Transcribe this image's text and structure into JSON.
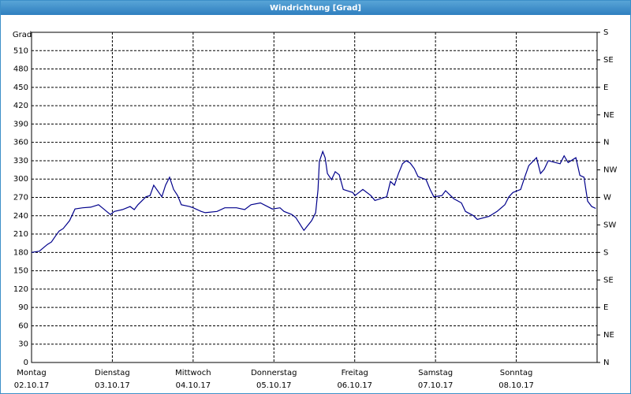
{
  "chart_data": {
    "type": "line",
    "title": "Windrichtung [Grad]",
    "y_label": "Grad",
    "color": "#00008b",
    "grid": true,
    "xlim": [
      0,
      168
    ],
    "xticks": [
      {
        "value": 0,
        "label": "Montag",
        "date": "02.10.17"
      },
      {
        "value": 24,
        "label": "Dienstag",
        "date": "03.10.17"
      },
      {
        "value": 48,
        "label": "Mittwoch",
        "date": "04.10.17"
      },
      {
        "value": 72,
        "label": "Donnerstag",
        "date": "05.10.17"
      },
      {
        "value": 96,
        "label": "Freitag",
        "date": "06.10.17"
      },
      {
        "value": 120,
        "label": "Samstag",
        "date": "07.10.17"
      },
      {
        "value": 144,
        "label": "Sonntag",
        "date": "08.10.17"
      }
    ],
    "ylim": [
      0,
      540
    ],
    "yticks": [
      0,
      30,
      60,
      90,
      120,
      150,
      180,
      210,
      240,
      270,
      300,
      330,
      360,
      390,
      420,
      450,
      480,
      510
    ],
    "y2lim": [
      0,
      540
    ],
    "y2ticks": [
      {
        "value": 0,
        "label": "N"
      },
      {
        "value": 45,
        "label": "NE"
      },
      {
        "value": 90,
        "label": "E"
      },
      {
        "value": 135,
        "label": "SE"
      },
      {
        "value": 180,
        "label": "S"
      },
      {
        "value": 225,
        "label": "SW"
      },
      {
        "value": 270,
        "label": "W"
      },
      {
        "value": 315,
        "label": "NW"
      },
      {
        "value": 360,
        "label": "N"
      },
      {
        "value": 405,
        "label": "NE"
      },
      {
        "value": 450,
        "label": "E"
      },
      {
        "value": 495,
        "label": "SE"
      },
      {
        "value": 540,
        "label": "S"
      }
    ],
    "x": [
      0,
      2.3,
      4.7,
      5.9,
      7.0,
      8.2,
      9.4,
      11.3,
      12.9,
      15.2,
      17.6,
      19.9,
      22.3,
      23.4,
      24.6,
      27.0,
      29.3,
      30.5,
      31.6,
      34.0,
      35.2,
      36.3,
      38.7,
      39.8,
      41.0,
      42.2,
      43.4,
      44.5,
      46.9,
      48.0,
      50.4,
      51.6,
      55.1,
      57.4,
      60.9,
      63.3,
      65.2,
      68.0,
      71.5,
      73.8,
      75.0,
      77.3,
      78.5,
      80.9,
      83.2,
      84.4,
      85.1,
      85.5,
      86.5,
      87.2,
      87.9,
      89.1,
      90.2,
      91.4,
      92.6,
      95.4,
      96.1,
      98.4,
      100.8,
      102.0,
      105.5,
      106.6,
      107.8,
      109.0,
      110.2,
      111.3,
      112.5,
      113.7,
      114.8,
      117.2,
      118.4,
      119.5,
      121.9,
      123.0,
      125.4,
      127.7,
      128.9,
      131.3,
      132.4,
      135.9,
      138.3,
      140.6,
      141.8,
      143.0,
      145.3,
      146.5,
      147.7,
      150.0,
      151.2,
      152.3,
      153.5,
      157.0,
      158.2,
      159.4,
      161.7,
      162.9,
      164.1,
      165.2,
      166.4,
      167.6
    ],
    "values": [
      180,
      182,
      193,
      197,
      206,
      215,
      219,
      232,
      251,
      253,
      254,
      258,
      247,
      242,
      247,
      250,
      255,
      250,
      258,
      271,
      273,
      290,
      271,
      290,
      303,
      283,
      273,
      258,
      255,
      253,
      247,
      245,
      247,
      253,
      253,
      250,
      258,
      261,
      251,
      253,
      247,
      242,
      237,
      216,
      232,
      245,
      283,
      329,
      345,
      335,
      309,
      299,
      312,
      307,
      283,
      278,
      273,
      283,
      273,
      265,
      271,
      296,
      290,
      309,
      325,
      330,
      326,
      317,
      304,
      299,
      283,
      271,
      273,
      281,
      268,
      261,
      247,
      240,
      234,
      239,
      247,
      258,
      271,
      278,
      283,
      303,
      322,
      335,
      309,
      316,
      330,
      325,
      338,
      327,
      335,
      306,
      303,
      264,
      255,
      252
    ]
  }
}
